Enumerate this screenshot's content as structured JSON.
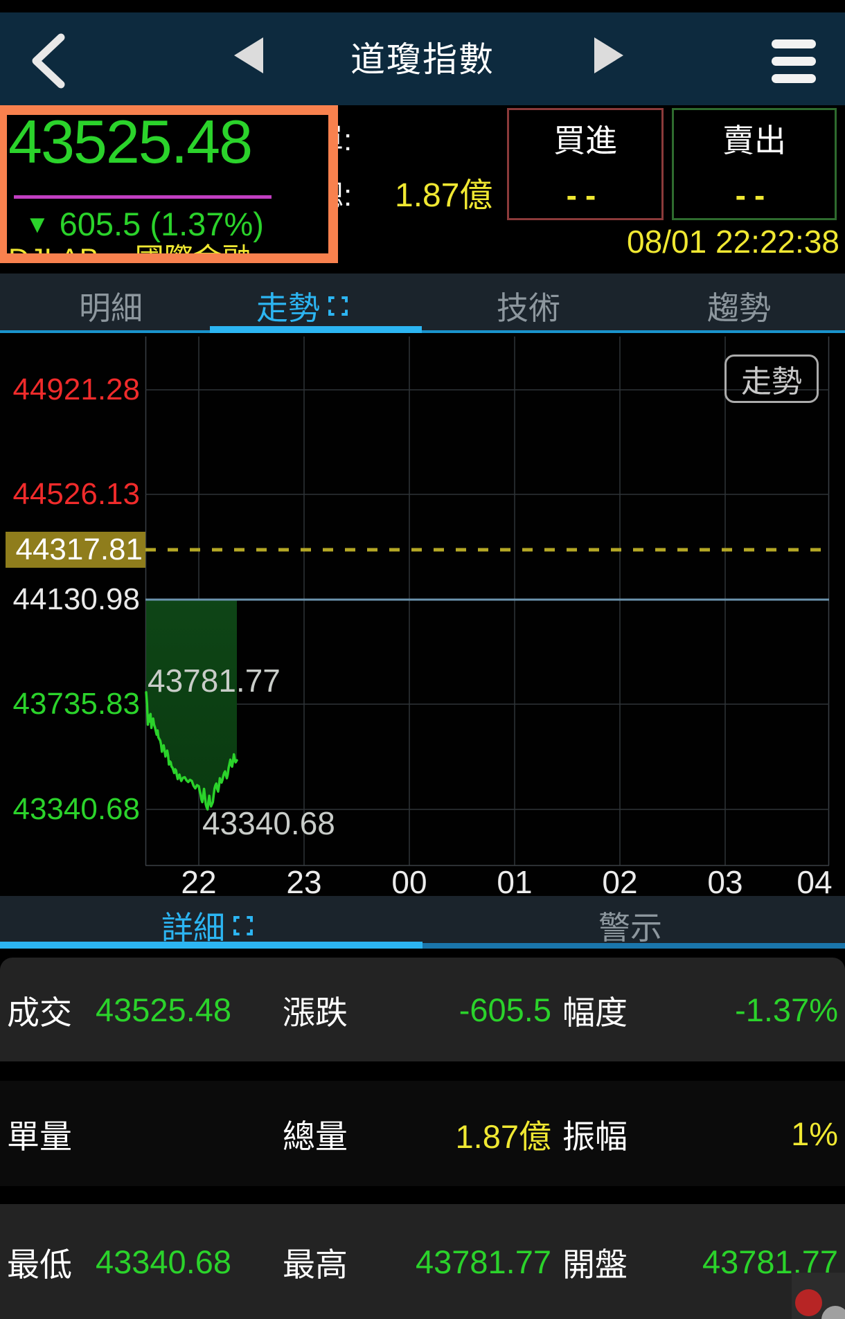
{
  "colors": {
    "green": "#2BD32B",
    "yellow": "#F0E832",
    "blue": "#2CB5F2",
    "orange": "#F8814E",
    "magenta": "#C13FC1",
    "red": "#F02B2B"
  },
  "nav": {
    "title": "道瓊指數"
  },
  "quote": {
    "price": "43525.48",
    "change_arrow": "▼",
    "change": "605.5",
    "change_pct": "(1.37%)",
    "symbol": "DJI.AB",
    "category": "國際金融",
    "unit_label": "單:",
    "total_label": "總:",
    "total_value": "1.87億",
    "buy_label": "買進",
    "buy_value": "--",
    "sell_label": "賣出",
    "sell_value": "--",
    "timestamp": "08/01 22:22:38"
  },
  "tabs_top": {
    "items": [
      {
        "label": "明細",
        "active": false
      },
      {
        "label": "走勢",
        "active": true
      },
      {
        "label": "技術",
        "active": false
      },
      {
        "label": "趨勢",
        "active": false
      }
    ]
  },
  "chart_badge": "走勢",
  "chart_data": {
    "type": "line",
    "title": "道瓊指數 走勢",
    "x_ticks": [
      "22",
      "23",
      "00",
      "01",
      "02",
      "03",
      "04"
    ],
    "minutes_between_ticks": 60,
    "series_start_offset_min_before_tick0": 30,
    "ylim": [
      43130,
      45122
    ],
    "grid": true,
    "y_axis_labels": [
      {
        "value": 44921.28,
        "color": "red"
      },
      {
        "value": 44526.13,
        "color": "red"
      },
      {
        "value": 44317.81,
        "color": "white",
        "highlighted": true
      },
      {
        "value": 44130.98,
        "color": "white"
      },
      {
        "value": 43735.83,
        "color": "green"
      },
      {
        "value": 43340.68,
        "color": "green"
      }
    ],
    "prev_close": 44130.98,
    "reference_dashed_value": 44317.81,
    "open": 43781.77,
    "high": 43781.77,
    "low": 43340.68,
    "last": 43525.48,
    "annotations": [
      "43781.77",
      "43340.68"
    ],
    "series": [
      {
        "name": "price",
        "points": [
          [
            0,
            43781.77
          ],
          [
            0.5,
            43738
          ],
          [
            1,
            43660
          ],
          [
            1.5,
            43695
          ],
          [
            2,
            43672
          ],
          [
            2.5,
            43700
          ],
          [
            3,
            43648
          ],
          [
            3.5,
            43672
          ],
          [
            4,
            43683
          ],
          [
            4.5,
            43660
          ],
          [
            5,
            43650
          ],
          [
            6,
            43622
          ],
          [
            6.5,
            43638
          ],
          [
            7,
            43612
          ],
          [
            8,
            43600
          ],
          [
            8.5,
            43585
          ],
          [
            9,
            43558
          ],
          [
            9.5,
            43575
          ],
          [
            10,
            43582
          ],
          [
            10.5,
            43562
          ],
          [
            11,
            43540
          ],
          [
            11.5,
            43553
          ],
          [
            12,
            43562
          ],
          [
            12.5,
            43543
          ],
          [
            13,
            43510
          ],
          [
            13.5,
            43522
          ],
          [
            14,
            43518
          ],
          [
            14.5,
            43502
          ],
          [
            15,
            43498
          ],
          [
            15.5,
            43488
          ],
          [
            16,
            43478
          ],
          [
            16.5,
            43492
          ],
          [
            17,
            43488
          ],
          [
            17.5,
            43470
          ],
          [
            18,
            43455
          ],
          [
            18.5,
            43468
          ],
          [
            19,
            43472
          ],
          [
            19.5,
            43458
          ],
          [
            20,
            43448
          ],
          [
            21,
            43460
          ],
          [
            22,
            43462
          ],
          [
            23,
            43450
          ],
          [
            24,
            43444
          ],
          [
            25,
            43452
          ],
          [
            26,
            43448
          ],
          [
            27,
            43430
          ],
          [
            28,
            43420
          ],
          [
            29,
            43432
          ],
          [
            30,
            43428
          ],
          [
            30.5,
            43410
          ],
          [
            31,
            43398
          ],
          [
            31.5,
            43378
          ],
          [
            32,
            43368
          ],
          [
            32.5,
            43392
          ],
          [
            33,
            43418
          ],
          [
            33.5,
            43388
          ],
          [
            34,
            43360
          ],
          [
            34.5,
            43348
          ],
          [
            35,
            43340.68
          ],
          [
            35.5,
            43368
          ],
          [
            36,
            43392
          ],
          [
            36.5,
            43364
          ],
          [
            37,
            43352
          ],
          [
            37.5,
            43360
          ],
          [
            38,
            43368
          ],
          [
            38.5,
            43395
          ],
          [
            39,
            43420
          ],
          [
            39.5,
            43432
          ],
          [
            40,
            43438
          ],
          [
            40.5,
            43418
          ],
          [
            41,
            43408
          ],
          [
            41.5,
            43428
          ],
          [
            42,
            43458
          ],
          [
            42.5,
            43448
          ],
          [
            43,
            43442
          ],
          [
            43.5,
            43452
          ],
          [
            44,
            43468
          ],
          [
            44.5,
            43478
          ],
          [
            45,
            43484
          ],
          [
            45.5,
            43468
          ],
          [
            46,
            43458
          ],
          [
            46.5,
            43472
          ],
          [
            47,
            43498
          ],
          [
            47.5,
            43512
          ],
          [
            48,
            43528
          ],
          [
            48.5,
            43508
          ],
          [
            49,
            43502
          ],
          [
            49.5,
            43522
          ],
          [
            50,
            43548
          ],
          [
            50.5,
            43530
          ],
          [
            51,
            43518
          ],
          [
            51.7,
            43525.48
          ]
        ]
      }
    ]
  },
  "tabs_bottom": {
    "detail": "詳細",
    "alert": "警示"
  },
  "details": {
    "rows": [
      [
        {
          "label": "成交",
          "value": "43525.48"
        },
        {
          "label": "漲跌",
          "value": "-605.5"
        },
        {
          "label": "幅度",
          "value": "-1.37%"
        }
      ],
      [
        {
          "label": "單量",
          "value": ""
        },
        {
          "label": "總量",
          "value": "1.87億"
        },
        {
          "label": "振幅",
          "value": "1%"
        }
      ],
      [
        {
          "label": "最低",
          "value": "43340.68"
        },
        {
          "label": "最高",
          "value": "43781.77"
        },
        {
          "label": "開盤",
          "value": "43781.77"
        }
      ]
    ]
  }
}
